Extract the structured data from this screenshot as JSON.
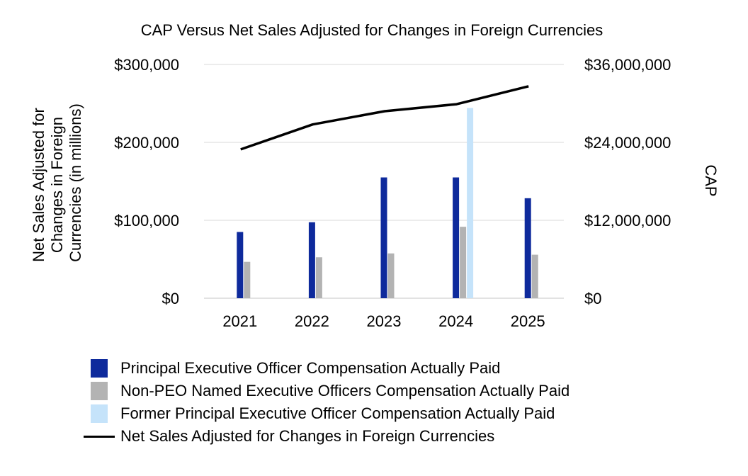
{
  "chart_data": {
    "type": "bar",
    "title": "CAP Versus Net Sales Adjusted for Changes in Foreign Currencies",
    "categories": [
      "2021",
      "2022",
      "2023",
      "2024",
      "2025"
    ],
    "y_left": {
      "label_lines": [
        "Net Sales Adjusted for",
        "Changes in Foreign",
        "Currencies  (in millions)"
      ],
      "ylim": [
        0,
        300000
      ],
      "ticks": [
        0,
        100000,
        200000,
        300000
      ],
      "tick_labels": [
        "$0",
        "$100,000",
        "$200,000",
        "$300,000"
      ]
    },
    "y_right": {
      "label": "CAP",
      "ylim": [
        0,
        36000000
      ],
      "ticks": [
        0,
        12000000,
        24000000,
        36000000
      ],
      "tick_labels": [
        "$0",
        "$12,000,000",
        "$24,000,000",
        "$36,000,000"
      ]
    },
    "grid": true,
    "legend_position": "bottom",
    "bar_series": [
      {
        "name": "Principal Executive Officer Compensation Actually Paid",
        "color": "#0e2a9c",
        "axis": "right",
        "values": [
          10200000,
          11700000,
          18600000,
          18600000,
          15400000
        ]
      },
      {
        "name": "Non-PEO Named Executive Officers Compensation Actually Paid",
        "color": "#b3b3b3",
        "axis": "right",
        "values": [
          5600000,
          6300000,
          6900000,
          11000000,
          6700000
        ]
      },
      {
        "name": "Former Principal Executive Officer Compensation Actually Paid",
        "color": "#c5e3fa",
        "axis": "right",
        "values": [
          null,
          null,
          null,
          29300000,
          null
        ]
      }
    ],
    "line_series": [
      {
        "name": "Net Sales Adjusted for Changes in Foreign Currencies",
        "color": "#000000",
        "axis": "left",
        "values": [
          191000,
          223000,
          240000,
          249000,
          272000
        ]
      }
    ]
  }
}
